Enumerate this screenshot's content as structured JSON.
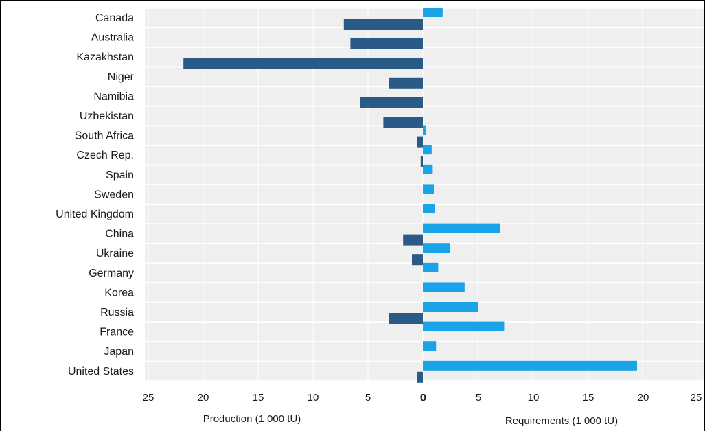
{
  "chart_data": {
    "type": "bar",
    "orientation": "horizontal-diverging",
    "categories": [
      "Canada",
      "Australia",
      "Kazakhstan",
      "Niger",
      "Namibia",
      "Uzbekistan",
      "South Africa",
      "Czech Rep.",
      "Spain",
      "Sweden",
      "United Kingdom",
      "China",
      "Ukraine",
      "Germany",
      "Korea",
      "Russia",
      "France",
      "Japan",
      "United States"
    ],
    "series": [
      {
        "key": "production",
        "values": [
          7.2,
          6.6,
          21.8,
          3.1,
          5.7,
          3.6,
          0.5,
          0.2,
          0,
          0,
          0,
          1.8,
          1.0,
          0,
          0,
          3.1,
          0,
          0,
          0.5
        ],
        "color": "#2a5b86"
      },
      {
        "key": "requirements",
        "values": [
          1.8,
          0,
          0,
          0,
          0,
          0,
          0.3,
          0.8,
          0.9,
          1.0,
          1.1,
          7.0,
          2.5,
          1.4,
          3.8,
          5.0,
          7.4,
          1.2,
          19.5
        ],
        "color": "#1aa3e6"
      }
    ],
    "left_axis": {
      "ticks": [
        "25",
        "20",
        "15",
        "10",
        "5",
        "0"
      ],
      "range": [
        25,
        0
      ]
    },
    "right_axis": {
      "ticks": [
        "0",
        "5",
        "10",
        "15",
        "20",
        "25"
      ],
      "range": [
        0,
        25
      ]
    },
    "left_title": "Production (1 000 tU)",
    "right_title": "Requirements (1 000 tU)",
    "grid": true
  }
}
